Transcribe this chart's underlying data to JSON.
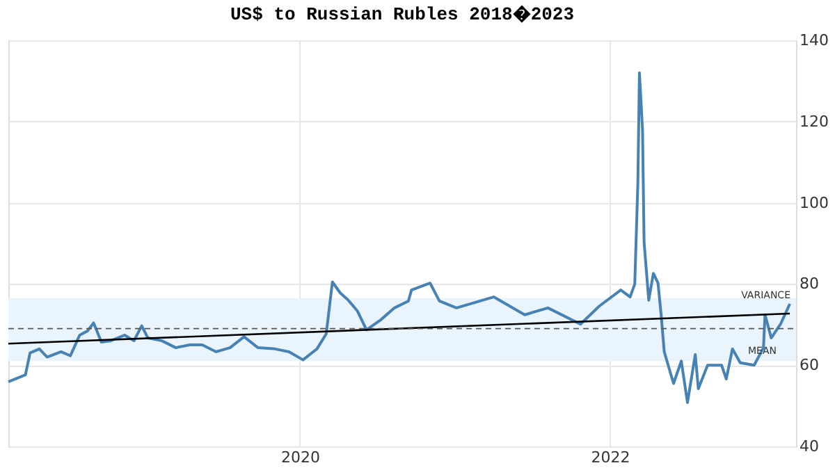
{
  "chart_data": {
    "type": "line",
    "title": "US$ to Russian Rubles 2018�2023",
    "xlim": [
      2018.12,
      2023.2
    ],
    "xticks": [
      2020,
      2022
    ],
    "ylim": [
      40,
      140
    ],
    "yticks": [
      40,
      60,
      80,
      100,
      120,
      140
    ],
    "grid": true,
    "series": [
      {
        "color": "#4682b4",
        "x": [
          2018.12,
          2018.23,
          2018.26,
          2018.32,
          2018.37,
          2018.46,
          2018.52,
          2018.58,
          2018.63,
          2018.67,
          2018.72,
          2018.78,
          2018.87,
          2018.93,
          2018.98,
          2019.02,
          2019.11,
          2019.2,
          2019.29,
          2019.37,
          2019.46,
          2019.55,
          2019.64,
          2019.73,
          2019.84,
          2019.93,
          2020.02,
          2020.11,
          2020.17,
          2020.21,
          2020.26,
          2020.31,
          2020.37,
          2020.43,
          2020.52,
          2020.61,
          2020.7,
          2020.72,
          2020.84,
          2020.9,
          2021.01,
          2021.25,
          2021.45,
          2021.6,
          2021.81,
          2021.93,
          2022.07,
          2022.13,
          2022.16,
          2022.18,
          2022.19,
          2022.21,
          2022.22,
          2022.25,
          2022.28,
          2022.31,
          2022.33,
          2022.35,
          2022.41,
          2022.46,
          2022.5,
          2022.55,
          2022.57,
          2022.63,
          2022.72,
          2022.75,
          2022.79,
          2022.84,
          2022.93,
          2022.99,
          2023.0,
          2023.04,
          2023.1,
          2023.16
        ],
        "values": [
          55.9,
          57.6,
          63.0,
          64.0,
          62.0,
          63.3,
          62.3,
          67.4,
          68.4,
          70.4,
          65.7,
          66.0,
          67.4,
          66.0,
          69.7,
          66.7,
          66.0,
          64.3,
          65.0,
          65.0,
          63.3,
          64.3,
          67.0,
          64.3,
          64.0,
          63.3,
          61.3,
          64.0,
          67.7,
          80.5,
          77.8,
          76.1,
          73.4,
          68.7,
          71.1,
          74.1,
          75.8,
          78.5,
          80.2,
          75.8,
          74.1,
          76.8,
          72.4,
          74.1,
          70.1,
          74.5,
          78.5,
          76.8,
          80.0,
          105.0,
          132.0,
          118.0,
          90.3,
          76.0,
          82.6,
          80.2,
          72.4,
          63.3,
          55.5,
          61.0,
          50.8,
          62.6,
          54.2,
          60.0,
          60.0,
          56.6,
          64.0,
          60.6,
          60.0,
          64.3,
          72.4,
          66.7,
          70.1,
          75.1
        ]
      },
      {
        "type": "line",
        "color": "#000000",
        "x": [
          2018.12,
          2023.16
        ],
        "values": [
          65.3,
          72.7
        ]
      }
    ],
    "ref_lines": [
      {
        "axis": "y",
        "value": 69,
        "label": "MEAN",
        "color": "#555555",
        "line_style": "dashed"
      }
    ],
    "bands": [
      {
        "axis": "y",
        "from": 61,
        "to": 76.5,
        "label": "VARIANCE",
        "color": "#eaf4fc"
      }
    ]
  }
}
